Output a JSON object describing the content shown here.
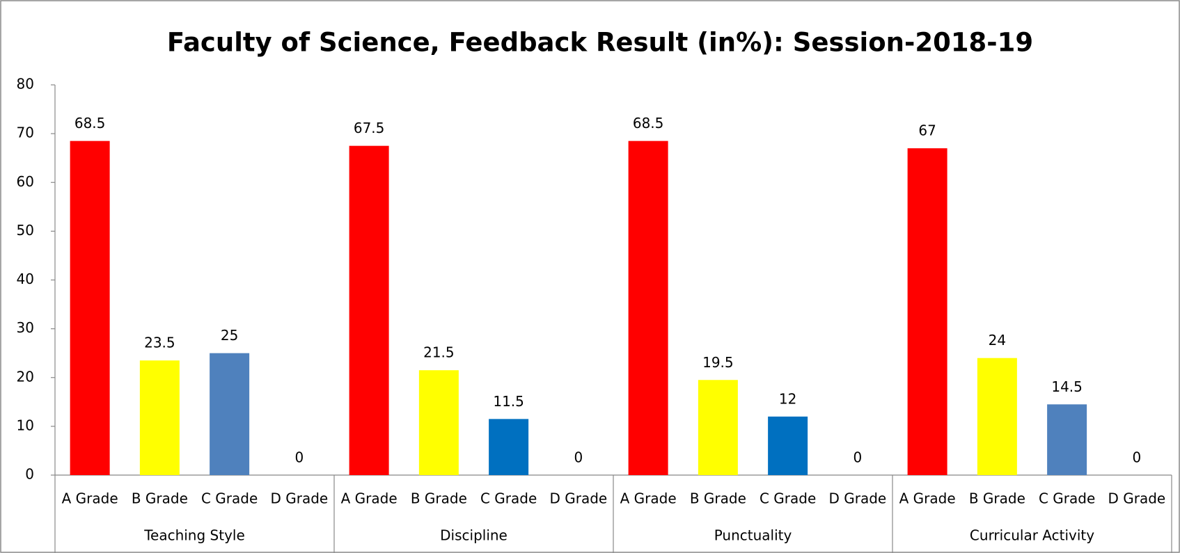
{
  "chart_data": {
    "type": "bar",
    "title": "Faculty of Science, Feedback Result (in%): Session-2018-19",
    "groups": [
      {
        "name": "Teaching Style",
        "categories": [
          "A Grade",
          "B Grade",
          "C Grade",
          "D Grade"
        ],
        "values": [
          68.5,
          23.5,
          25,
          0
        ],
        "colors": [
          "#ff0000",
          "#ffff00",
          "#4f81bd",
          "#4f81bd"
        ]
      },
      {
        "name": "Discipline",
        "categories": [
          "A Grade",
          "B Grade",
          "C Grade",
          "D Grade"
        ],
        "values": [
          67.5,
          21.5,
          11.5,
          0
        ],
        "colors": [
          "#ff0000",
          "#ffff00",
          "#0070c0",
          "#0070c0"
        ]
      },
      {
        "name": "Punctuality",
        "categories": [
          "A Grade",
          "B Grade",
          "C Grade",
          "D Grade"
        ],
        "values": [
          68.5,
          19.5,
          12,
          0
        ],
        "colors": [
          "#ff0000",
          "#ffff00",
          "#0070c0",
          "#0070c0"
        ]
      },
      {
        "name": "Curricular Activity",
        "categories": [
          "A Grade",
          "B Grade",
          "C Grade",
          "D Grade"
        ],
        "values": [
          67,
          24,
          14.5,
          0
        ],
        "colors": [
          "#ff0000",
          "#ffff00",
          "#4f81bd",
          "#4f81bd"
        ]
      }
    ],
    "ylim": [
      0,
      80
    ],
    "yticks": [
      0,
      10,
      20,
      30,
      40,
      50,
      60,
      70,
      80
    ],
    "grid": false
  }
}
